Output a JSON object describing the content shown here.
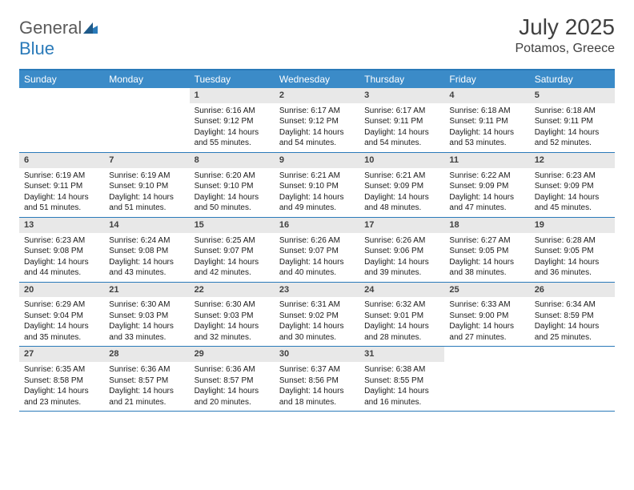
{
  "brand": {
    "part1": "General",
    "part2": "Blue"
  },
  "title": "July 2025",
  "location": "Potamos, Greece",
  "colors": {
    "header_bg": "#3b8bc8",
    "border": "#2a7ab9",
    "daynum_bg": "#e8e8e8",
    "text": "#1a1a1a",
    "title_text": "#404040"
  },
  "days_of_week": [
    "Sunday",
    "Monday",
    "Tuesday",
    "Wednesday",
    "Thursday",
    "Friday",
    "Saturday"
  ],
  "weeks": [
    [
      null,
      null,
      {
        "n": "1",
        "sr": "6:16 AM",
        "ss": "9:12 PM",
        "dl": "14 hours and 55 minutes."
      },
      {
        "n": "2",
        "sr": "6:17 AM",
        "ss": "9:12 PM",
        "dl": "14 hours and 54 minutes."
      },
      {
        "n": "3",
        "sr": "6:17 AM",
        "ss": "9:11 PM",
        "dl": "14 hours and 54 minutes."
      },
      {
        "n": "4",
        "sr": "6:18 AM",
        "ss": "9:11 PM",
        "dl": "14 hours and 53 minutes."
      },
      {
        "n": "5",
        "sr": "6:18 AM",
        "ss": "9:11 PM",
        "dl": "14 hours and 52 minutes."
      }
    ],
    [
      {
        "n": "6",
        "sr": "6:19 AM",
        "ss": "9:11 PM",
        "dl": "14 hours and 51 minutes."
      },
      {
        "n": "7",
        "sr": "6:19 AM",
        "ss": "9:10 PM",
        "dl": "14 hours and 51 minutes."
      },
      {
        "n": "8",
        "sr": "6:20 AM",
        "ss": "9:10 PM",
        "dl": "14 hours and 50 minutes."
      },
      {
        "n": "9",
        "sr": "6:21 AM",
        "ss": "9:10 PM",
        "dl": "14 hours and 49 minutes."
      },
      {
        "n": "10",
        "sr": "6:21 AM",
        "ss": "9:09 PM",
        "dl": "14 hours and 48 minutes."
      },
      {
        "n": "11",
        "sr": "6:22 AM",
        "ss": "9:09 PM",
        "dl": "14 hours and 47 minutes."
      },
      {
        "n": "12",
        "sr": "6:23 AM",
        "ss": "9:09 PM",
        "dl": "14 hours and 45 minutes."
      }
    ],
    [
      {
        "n": "13",
        "sr": "6:23 AM",
        "ss": "9:08 PM",
        "dl": "14 hours and 44 minutes."
      },
      {
        "n": "14",
        "sr": "6:24 AM",
        "ss": "9:08 PM",
        "dl": "14 hours and 43 minutes."
      },
      {
        "n": "15",
        "sr": "6:25 AM",
        "ss": "9:07 PM",
        "dl": "14 hours and 42 minutes."
      },
      {
        "n": "16",
        "sr": "6:26 AM",
        "ss": "9:07 PM",
        "dl": "14 hours and 40 minutes."
      },
      {
        "n": "17",
        "sr": "6:26 AM",
        "ss": "9:06 PM",
        "dl": "14 hours and 39 minutes."
      },
      {
        "n": "18",
        "sr": "6:27 AM",
        "ss": "9:05 PM",
        "dl": "14 hours and 38 minutes."
      },
      {
        "n": "19",
        "sr": "6:28 AM",
        "ss": "9:05 PM",
        "dl": "14 hours and 36 minutes."
      }
    ],
    [
      {
        "n": "20",
        "sr": "6:29 AM",
        "ss": "9:04 PM",
        "dl": "14 hours and 35 minutes."
      },
      {
        "n": "21",
        "sr": "6:30 AM",
        "ss": "9:03 PM",
        "dl": "14 hours and 33 minutes."
      },
      {
        "n": "22",
        "sr": "6:30 AM",
        "ss": "9:03 PM",
        "dl": "14 hours and 32 minutes."
      },
      {
        "n": "23",
        "sr": "6:31 AM",
        "ss": "9:02 PM",
        "dl": "14 hours and 30 minutes."
      },
      {
        "n": "24",
        "sr": "6:32 AM",
        "ss": "9:01 PM",
        "dl": "14 hours and 28 minutes."
      },
      {
        "n": "25",
        "sr": "6:33 AM",
        "ss": "9:00 PM",
        "dl": "14 hours and 27 minutes."
      },
      {
        "n": "26",
        "sr": "6:34 AM",
        "ss": "8:59 PM",
        "dl": "14 hours and 25 minutes."
      }
    ],
    [
      {
        "n": "27",
        "sr": "6:35 AM",
        "ss": "8:58 PM",
        "dl": "14 hours and 23 minutes."
      },
      {
        "n": "28",
        "sr": "6:36 AM",
        "ss": "8:57 PM",
        "dl": "14 hours and 21 minutes."
      },
      {
        "n": "29",
        "sr": "6:36 AM",
        "ss": "8:57 PM",
        "dl": "14 hours and 20 minutes."
      },
      {
        "n": "30",
        "sr": "6:37 AM",
        "ss": "8:56 PM",
        "dl": "14 hours and 18 minutes."
      },
      {
        "n": "31",
        "sr": "6:38 AM",
        "ss": "8:55 PM",
        "dl": "14 hours and 16 minutes."
      },
      null,
      null
    ]
  ],
  "labels": {
    "sunrise": "Sunrise:",
    "sunset": "Sunset:",
    "daylight": "Daylight:"
  }
}
